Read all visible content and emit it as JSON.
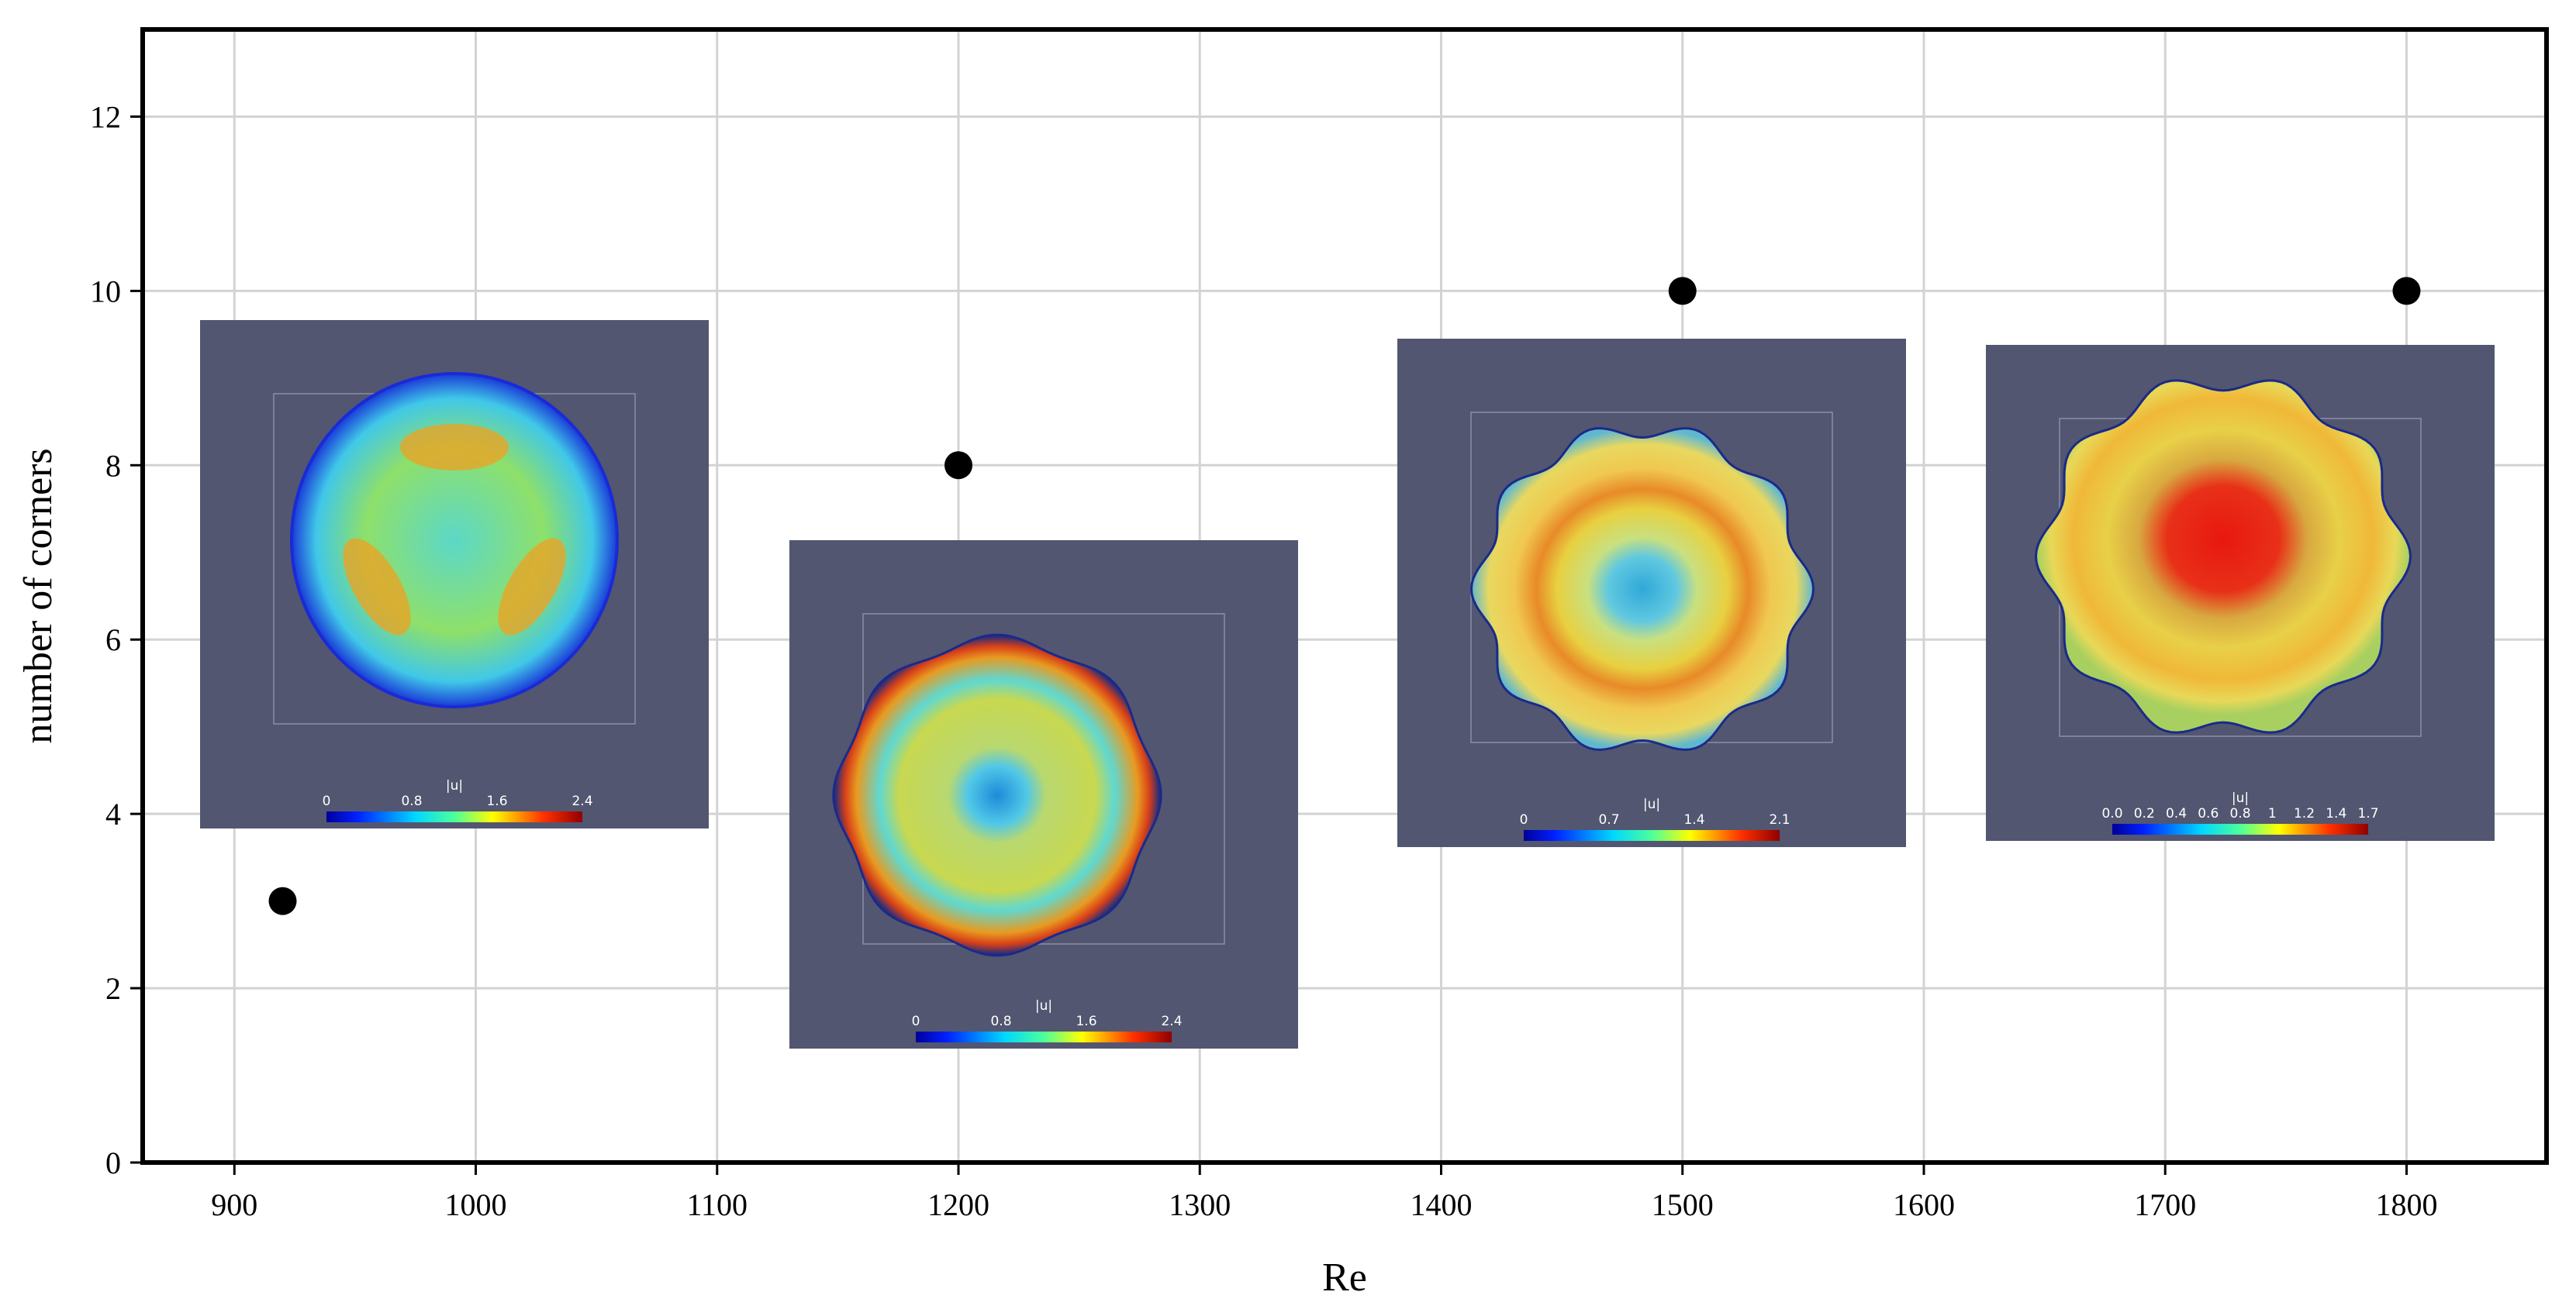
{
  "chart_data": {
    "type": "scatter",
    "xlabel": "Re",
    "ylabel": "number of corners",
    "xlim": [
      862,
      1858
    ],
    "ylim": [
      0,
      13
    ],
    "x_ticks": [
      900,
      1000,
      1100,
      1200,
      1300,
      1400,
      1500,
      1600,
      1700,
      1800
    ],
    "y_ticks": [
      0,
      2,
      4,
      6,
      8,
      10,
      12
    ],
    "grid": true,
    "points": [
      {
        "x": 920,
        "y": 3
      },
      {
        "x": 1200,
        "y": 8
      },
      {
        "x": 1500,
        "y": 10
      },
      {
        "x": 1800,
        "y": 10
      }
    ],
    "marker_color": "#000000",
    "insets": [
      {
        "id": "re920",
        "colorbar_title": "|u|",
        "colorbar_ticks": [
          "0",
          "0.8",
          "1.6",
          "2.4"
        ]
      },
      {
        "id": "re1200",
        "colorbar_title": "|u|",
        "colorbar_ticks": [
          "0",
          "0.8",
          "1.6",
          "2.4"
        ]
      },
      {
        "id": "re1500",
        "colorbar_title": "|u|",
        "colorbar_ticks": [
          "0",
          "0.7",
          "1.4",
          "2.1"
        ]
      },
      {
        "id": "re1800",
        "colorbar_title": "|u|",
        "colorbar_ticks": [
          "0.0",
          "0.2",
          "0.4",
          "0.6",
          "0.8",
          "1",
          "1.2",
          "1.4",
          "1.7"
        ]
      }
    ],
    "inset_background": "#525670"
  }
}
